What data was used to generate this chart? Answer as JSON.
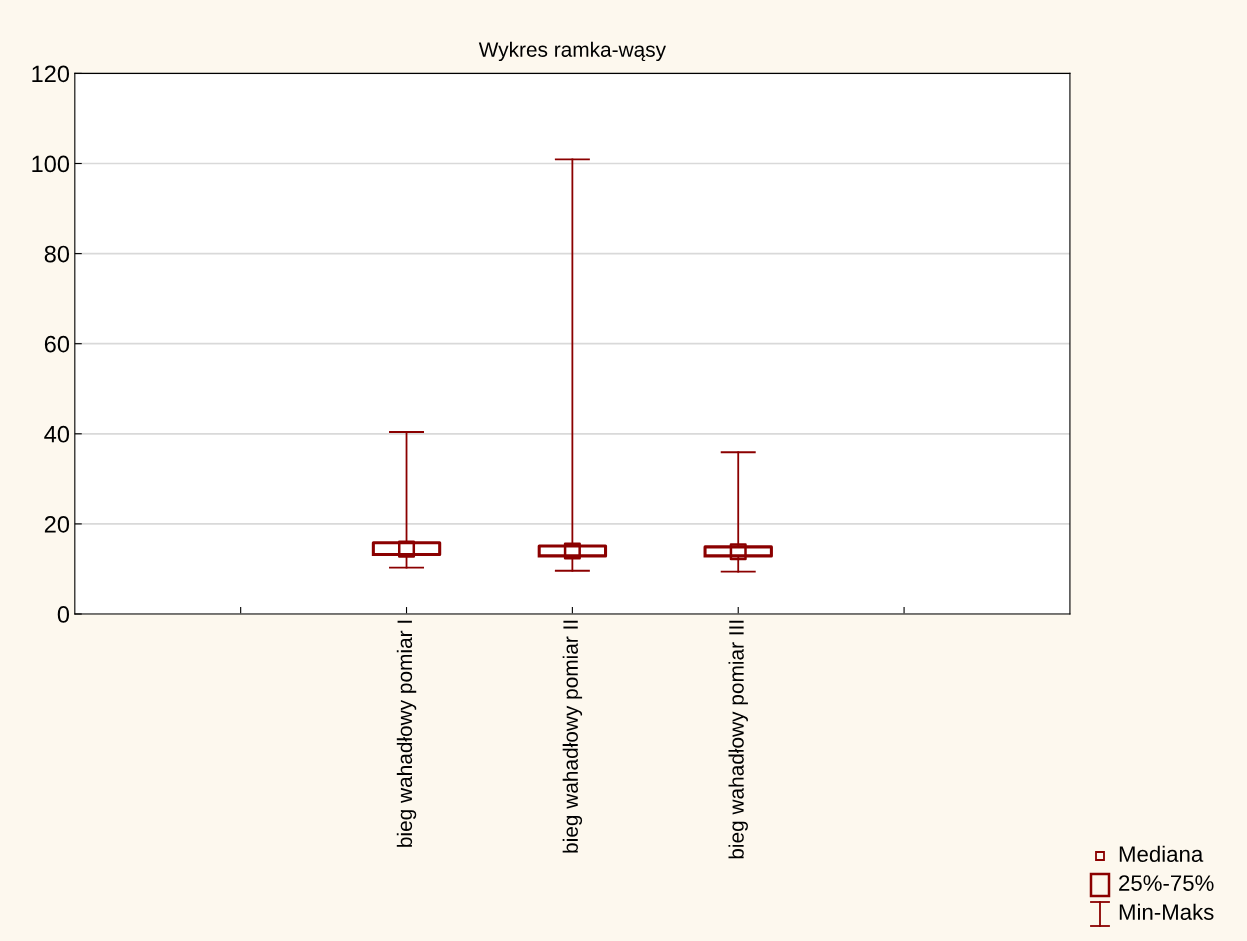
{
  "chart_data": {
    "type": "box",
    "title": "Wykres ramka-wąsy",
    "categories": [
      null,
      "bieg wahadłowy pomiar I",
      "bieg wahadłowy pomiar II",
      "bieg wahadłowy pomiar III",
      null
    ],
    "boxes": [
      null,
      {
        "low": 10.3,
        "q1": 13.2,
        "median": 14.4,
        "q3": 15.8,
        "high": 40.4
      },
      {
        "low": 9.6,
        "q1": 12.9,
        "median": 14.0,
        "q3": 15.1,
        "high": 100.9
      },
      {
        "low": 9.4,
        "q1": 12.9,
        "median": 13.8,
        "q3": 14.9,
        "high": 35.9
      },
      null
    ],
    "color": "#8b0000",
    "annotations": [
      "Mediana",
      "25%-75%",
      "Min-Maks"
    ],
    "ylim": [
      0,
      120
    ],
    "yticks": [
      0,
      20,
      40,
      60,
      80,
      100,
      120
    ],
    "grid": "y"
  }
}
